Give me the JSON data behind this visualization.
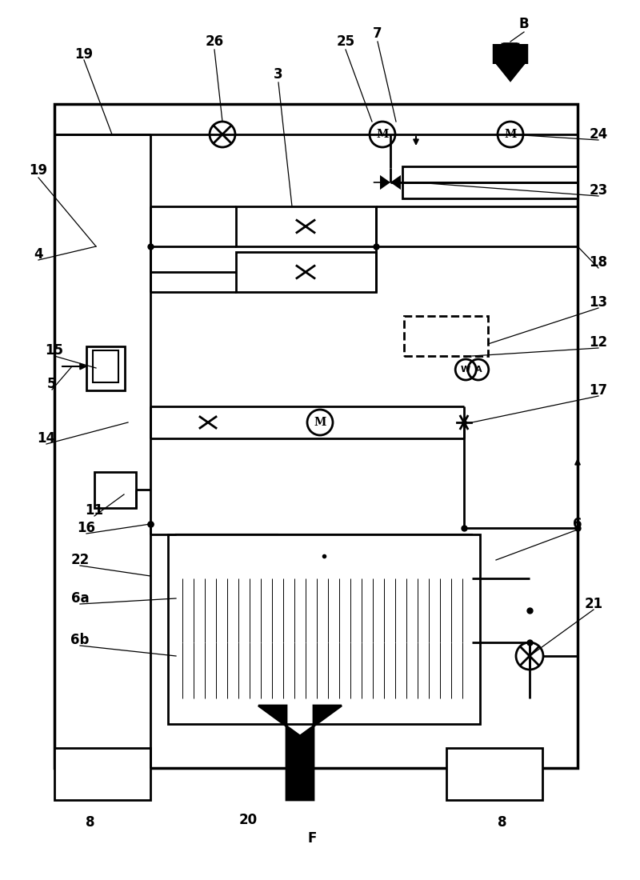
{
  "bg_color": "#ffffff",
  "lw_main": 2.0,
  "lw_thin": 1.5,
  "lw_border": 2.5,
  "labels": [
    [
      105,
      68,
      "19"
    ],
    [
      268,
      52,
      "26"
    ],
    [
      348,
      93,
      "3"
    ],
    [
      432,
      52,
      "25"
    ],
    [
      472,
      42,
      "7"
    ],
    [
      655,
      30,
      "B"
    ],
    [
      748,
      168,
      "24"
    ],
    [
      748,
      238,
      "23"
    ],
    [
      48,
      213,
      "19"
    ],
    [
      48,
      318,
      "4"
    ],
    [
      748,
      328,
      "18"
    ],
    [
      748,
      378,
      "13"
    ],
    [
      68,
      438,
      "15"
    ],
    [
      65,
      480,
      "5"
    ],
    [
      748,
      428,
      "12"
    ],
    [
      748,
      488,
      "17"
    ],
    [
      58,
      548,
      "14"
    ],
    [
      118,
      638,
      "11"
    ],
    [
      108,
      660,
      "16"
    ],
    [
      100,
      700,
      "22"
    ],
    [
      100,
      748,
      "6a"
    ],
    [
      100,
      800,
      "6b"
    ],
    [
      722,
      655,
      "6"
    ],
    [
      742,
      755,
      "21"
    ],
    [
      310,
      1025,
      "20"
    ],
    [
      113,
      1028,
      "8"
    ],
    [
      628,
      1028,
      "8"
    ],
    [
      390,
      1048,
      "F"
    ]
  ]
}
